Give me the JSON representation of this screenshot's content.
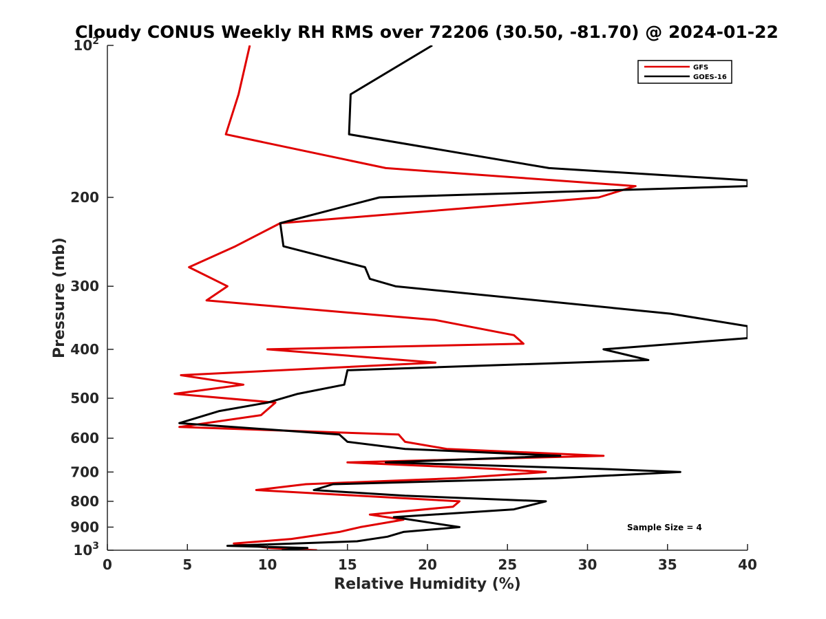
{
  "chart_data": {
    "type": "line",
    "title": "Cloudy CONUS Weekly RH RMS over 72206 (30.50, -81.70) @ 2024-01-22",
    "xlabel": "Relative Humidity (%)",
    "ylabel": "Pressure (mb)",
    "xlim": [
      0,
      40
    ],
    "ylim": [
      100,
      1000
    ],
    "y_scale": "log",
    "y_reversed": true,
    "x_ticks": [
      0,
      5,
      10,
      15,
      20,
      25,
      30,
      35,
      40
    ],
    "x_tick_labels": [
      "0",
      "5",
      "10",
      "15",
      "20",
      "25",
      "30",
      "35",
      "40"
    ],
    "y_ticks": [
      100,
      200,
      300,
      400,
      500,
      600,
      700,
      800,
      900,
      1000
    ],
    "y_tick_labels": [
      {
        "base": "10",
        "exp": "2"
      },
      {
        "base": "200",
        "exp": ""
      },
      {
        "base": "300",
        "exp": ""
      },
      {
        "base": "400",
        "exp": ""
      },
      {
        "base": "500",
        "exp": ""
      },
      {
        "base": "600",
        "exp": ""
      },
      {
        "base": "700",
        "exp": ""
      },
      {
        "base": "800",
        "exp": ""
      },
      {
        "base": "900",
        "exp": ""
      },
      {
        "base": "10",
        "exp": "3"
      }
    ],
    "legend_position": "top-right",
    "annotation": "Sample Size = 4",
    "series": [
      {
        "name": "GFS",
        "color": "#e00000",
        "points": [
          [
            8.9,
            100
          ],
          [
            8.2,
            125
          ],
          [
            7.4,
            150
          ],
          [
            17.4,
            175
          ],
          [
            33.0,
            190
          ],
          [
            30.7,
            200
          ],
          [
            10.8,
            225
          ],
          [
            8.0,
            250
          ],
          [
            5.1,
            275
          ],
          [
            7.5,
            300
          ],
          [
            6.2,
            320
          ],
          [
            20.5,
            350
          ],
          [
            25.4,
            375
          ],
          [
            26.0,
            390
          ],
          [
            10.0,
            400
          ],
          [
            20.5,
            425
          ],
          [
            4.6,
            450
          ],
          [
            8.5,
            470
          ],
          [
            4.2,
            490
          ],
          [
            10.5,
            510
          ],
          [
            9.6,
            540
          ],
          [
            4.5,
            570
          ],
          [
            18.2,
            590
          ],
          [
            18.6,
            610
          ],
          [
            21.2,
            630
          ],
          [
            31.0,
            650
          ],
          [
            15.0,
            670
          ],
          [
            24.2,
            690
          ],
          [
            27.4,
            700
          ],
          [
            21.8,
            720
          ],
          [
            12.4,
            740
          ],
          [
            9.3,
            760
          ],
          [
            22.0,
            800
          ],
          [
            21.6,
            820
          ],
          [
            16.4,
            850
          ],
          [
            18.5,
            870
          ],
          [
            15.8,
            900
          ],
          [
            14.5,
            920
          ],
          [
            11.5,
            950
          ],
          [
            7.9,
            970
          ],
          [
            10.2,
            990
          ],
          [
            13.1,
            1000
          ]
        ]
      },
      {
        "name": "GOES-16",
        "color": "#000000",
        "points": [
          [
            20.3,
            100
          ],
          [
            15.2,
            125
          ],
          [
            15.1,
            150
          ],
          [
            27.6,
            175
          ],
          [
            40.0,
            185
          ],
          [
            40.0,
            190
          ],
          [
            17.0,
            200
          ],
          [
            10.8,
            225
          ],
          [
            11.0,
            250
          ],
          [
            16.1,
            275
          ],
          [
            16.4,
            290
          ],
          [
            18.0,
            300
          ],
          [
            35.2,
            340
          ],
          [
            40.0,
            360
          ],
          [
            40.0,
            380
          ],
          [
            31.0,
            400
          ],
          [
            33.8,
            420
          ],
          [
            15.0,
            440
          ],
          [
            14.8,
            470
          ],
          [
            11.9,
            490
          ],
          [
            10.0,
            510
          ],
          [
            7.0,
            530
          ],
          [
            4.5,
            560
          ],
          [
            14.5,
            590
          ],
          [
            15.0,
            610
          ],
          [
            18.6,
            630
          ],
          [
            28.3,
            650
          ],
          [
            17.4,
            670
          ],
          [
            30.8,
            690
          ],
          [
            35.8,
            700
          ],
          [
            28.0,
            720
          ],
          [
            14.1,
            740
          ],
          [
            12.9,
            760
          ],
          [
            18.6,
            780
          ],
          [
            27.4,
            800
          ],
          [
            25.4,
            830
          ],
          [
            17.9,
            860
          ],
          [
            22.0,
            900
          ],
          [
            18.5,
            920
          ],
          [
            17.5,
            940
          ],
          [
            15.6,
            960
          ],
          [
            7.5,
            980
          ],
          [
            12.5,
            990
          ],
          [
            10.9,
            1000
          ]
        ]
      }
    ]
  }
}
